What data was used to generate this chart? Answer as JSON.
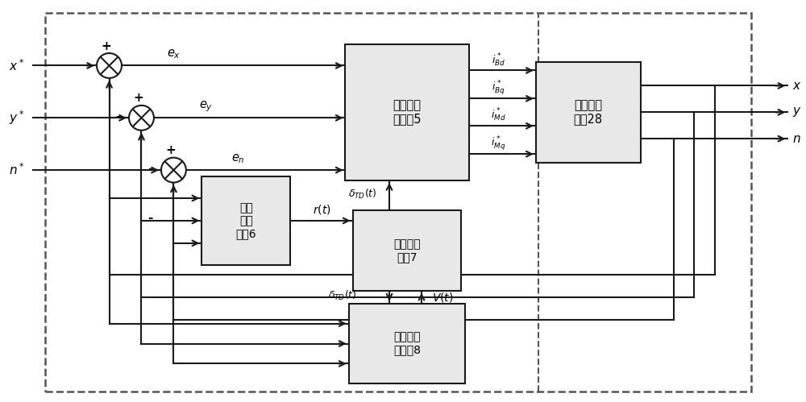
{
  "bg": "#ffffff",
  "lc": "#1a1a1a",
  "bc": "#e8e8e8",
  "be": "#1a1a1a",
  "dc": "#555555",
  "actor_label": "执行器神\n经网络5",
  "plant_label": "复合被控\n对象28",
  "reinforce_label": "强化\n信号\n模块6",
  "td_label": "瞬时差分\n模块7",
  "critic_label": "评价器神\n经网络8",
  "inputs": [
    "$x^*$",
    "$y^*$",
    "$n^*$"
  ],
  "outputs": [
    "$x$",
    "$y$",
    "$n$"
  ],
  "i_labels": [
    "$i_{Bd}^*$",
    "$i_{Bq}^*$",
    "$i_{Md}^*$",
    "$i_{Mq}^*$"
  ],
  "e_labels": [
    "$e_x$",
    "$e_y$",
    "$e_n$"
  ],
  "rt_label": "$r(t)$",
  "vt_label": "$V(t)$",
  "delta_up_label": "$\\delta_{TD}(t)$",
  "delta_dn_label": "$\\delta_{TD}(t)$"
}
